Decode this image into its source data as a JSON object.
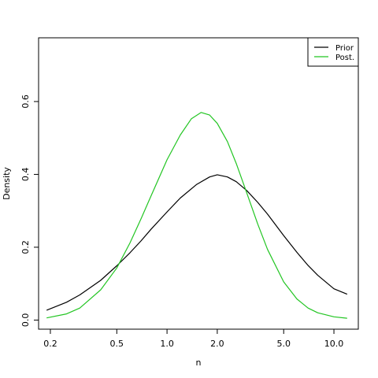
{
  "chart_data": {
    "type": "line",
    "title": "",
    "xlabel": "n",
    "ylabel": "Density",
    "x_scale": "log",
    "xlim": [
      0.17,
      14
    ],
    "ylim": [
      -0.025,
      0.775
    ],
    "x_ticks": [
      0.2,
      0.5,
      1.0,
      2.0,
      5.0,
      10.0
    ],
    "x_tick_labels": [
      "0.2",
      "0.5",
      "1.0",
      "2.0",
      "5.0",
      "10.0"
    ],
    "y_ticks": [
      0.0,
      0.2,
      0.4,
      0.6
    ],
    "y_tick_labels": [
      "0.0",
      "0.2",
      "0.4",
      "0.6"
    ],
    "grid": false,
    "legend": {
      "position": "top-right"
    },
    "series": [
      {
        "name": "Prior",
        "color": "#000000",
        "x": [
          0.19,
          0.25,
          0.3,
          0.4,
          0.5,
          0.6,
          0.7,
          0.8,
          1.0,
          1.2,
          1.5,
          1.8,
          2.0,
          2.3,
          2.6,
          3.0,
          3.5,
          4.0,
          5.0,
          6.0,
          7.0,
          8.0,
          10.0,
          12.0
        ],
        "values": [
          0.027,
          0.049,
          0.069,
          0.109,
          0.149,
          0.185,
          0.218,
          0.249,
          0.297,
          0.335,
          0.372,
          0.393,
          0.399,
          0.393,
          0.38,
          0.356,
          0.323,
          0.291,
          0.232,
          0.186,
          0.15,
          0.123,
          0.086,
          0.071
        ]
      },
      {
        "name": "Post.",
        "color": "#22c522",
        "x": [
          0.19,
          0.25,
          0.3,
          0.4,
          0.5,
          0.6,
          0.7,
          0.8,
          1.0,
          1.2,
          1.4,
          1.6,
          1.8,
          2.0,
          2.3,
          2.6,
          3.0,
          3.5,
          4.0,
          5.0,
          6.0,
          7.0,
          8.0,
          10.0,
          12.0
        ],
        "values": [
          0.006,
          0.017,
          0.033,
          0.083,
          0.143,
          0.212,
          0.279,
          0.34,
          0.44,
          0.508,
          0.553,
          0.57,
          0.563,
          0.54,
          0.49,
          0.43,
          0.35,
          0.263,
          0.194,
          0.105,
          0.058,
          0.033,
          0.02,
          0.009,
          0.005
        ]
      }
    ]
  }
}
